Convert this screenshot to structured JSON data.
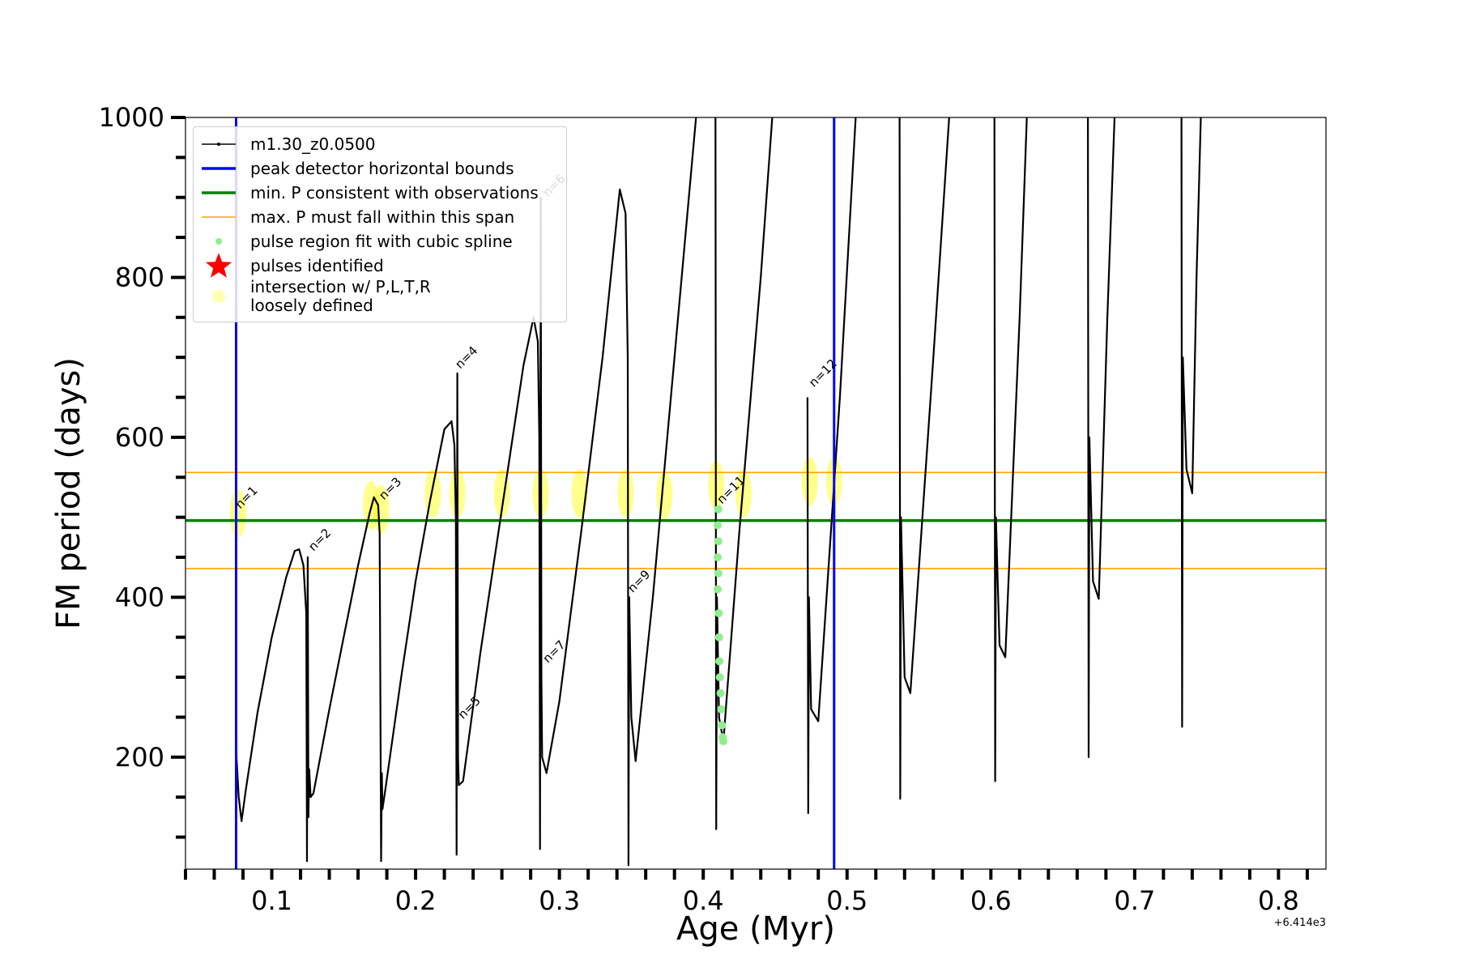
{
  "chart_data": {
    "type": "line",
    "xlabel": "Age (Myr)",
    "ylabel": "FM period (days)",
    "x_offset_label": "+6.414e3",
    "xlim": [
      0.04,
      0.833
    ],
    "ylim": [
      60,
      1000
    ],
    "xticks": [
      0.1,
      0.2,
      0.3,
      0.4,
      0.5,
      0.6,
      0.7,
      0.8
    ],
    "xminorticks": [
      0.04,
      0.06,
      0.08,
      0.12,
      0.14,
      0.16,
      0.18,
      0.22,
      0.24,
      0.26,
      0.28,
      0.32,
      0.34,
      0.36,
      0.38,
      0.42,
      0.44,
      0.46,
      0.48,
      0.52,
      0.54,
      0.56,
      0.58,
      0.62,
      0.64,
      0.66,
      0.68,
      0.72,
      0.74,
      0.76,
      0.78,
      0.82
    ],
    "yticks": [
      200,
      400,
      600,
      800,
      1000
    ],
    "yminorticks": [
      100,
      150,
      250,
      300,
      350,
      450,
      500,
      550,
      650,
      700,
      750,
      850,
      900,
      950
    ],
    "legend": "upper left",
    "series": [
      {
        "name": "m1.30_z0.0500",
        "kind": "line",
        "color": "#000000",
        "x": [
          0.0752,
          0.0755,
          0.077,
          0.079,
          0.082,
          0.09,
          0.1,
          0.11,
          0.116,
          0.119,
          0.122,
          0.124,
          0.1245,
          0.125,
          0.1255,
          0.126,
          0.127,
          0.129,
          0.14,
          0.15,
          0.16,
          0.168,
          0.171,
          0.174,
          0.175,
          0.176,
          0.1765,
          0.177,
          0.179,
          0.19,
          0.2,
          0.21,
          0.22,
          0.225,
          0.227,
          0.228,
          0.2285,
          0.229,
          0.2295,
          0.23,
          0.233,
          0.245,
          0.26,
          0.275,
          0.282,
          0.285,
          0.286,
          0.2865,
          0.287,
          0.2875,
          0.288,
          0.291,
          0.3,
          0.315,
          0.33,
          0.342,
          0.346,
          0.3475,
          0.348,
          0.3485,
          0.35,
          0.353,
          0.365,
          0.38,
          0.395,
          0.4,
          0.4085,
          0.409,
          0.4095,
          0.411,
          0.414,
          0.425,
          0.44,
          0.448,
          0.46,
          0.4725,
          0.473,
          0.4735,
          0.475,
          0.48,
          0.495,
          0.506,
          0.52,
          0.5365,
          0.537,
          0.5375,
          0.54,
          0.544,
          0.56,
          0.571,
          0.59,
          0.6025,
          0.603,
          0.6035,
          0.606,
          0.61,
          0.62,
          0.625,
          0.65,
          0.6675,
          0.668,
          0.6685,
          0.671,
          0.675,
          0.681,
          0.686,
          0.71,
          0.7325,
          0.733,
          0.7335,
          0.736,
          0.74,
          0.743,
          0.746
        ],
        "values": [
          335,
          200,
          150,
          120,
          160,
          255,
          350,
          425,
          458,
          460,
          440,
          380,
          70,
          450,
          125,
          185,
          150,
          155,
          260,
          350,
          440,
          505,
          525,
          515,
          480,
          70,
          180,
          135,
          160,
          300,
          420,
          520,
          610,
          620,
          590,
          500,
          78,
          680,
          200,
          165,
          170,
          330,
          510,
          690,
          750,
          720,
          600,
          85,
          900,
          300,
          200,
          180,
          270,
          480,
          700,
          910,
          880,
          700,
          65,
          400,
          250,
          195,
          400,
          700,
          1000,
          null,
          1000,
          110,
          400,
          250,
          220,
          480,
          800,
          1000,
          null,
          650,
          130,
          400,
          260,
          245,
          650,
          1000,
          null,
          1000,
          148,
          500,
          300,
          280,
          700,
          1000,
          null,
          1000,
          170,
          500,
          340,
          325,
          750,
          1000,
          null,
          1000,
          200,
          600,
          420,
          398,
          750,
          1000,
          null,
          1000,
          238,
          700,
          560,
          530,
          800,
          1000
        ]
      },
      {
        "name": "peak detector horizontal bounds",
        "kind": "vline",
        "color": "#0000ff",
        "x": [
          0.0752,
          0.491
        ]
      },
      {
        "name": "min. P consistent with observations",
        "kind": "hline",
        "color": "#008000",
        "values": [
          496
        ]
      },
      {
        "name": "max. P must fall within this span",
        "kind": "hline",
        "color": "#ffa500",
        "values": [
          556,
          436
        ]
      },
      {
        "name": "pulse region fit with cubic spline",
        "kind": "scatter",
        "color": "#90ee90",
        "x": [
          0.4105,
          0.41,
          0.4105,
          0.41,
          0.4105,
          0.41,
          0.4108,
          0.411,
          0.4112,
          0.4115,
          0.412,
          0.4125,
          0.413,
          0.4135,
          0.414
        ],
        "values": [
          510,
          490,
          470,
          450,
          430,
          410,
          380,
          350,
          320,
          300,
          280,
          260,
          240,
          225,
          220
        ]
      },
      {
        "name": "pulses identified",
        "kind": "star",
        "color": "#ff0000",
        "x": [],
        "values": []
      },
      {
        "name": "intersection w/ P,L,T,R\nloosely defined",
        "kind": "ellipse",
        "color": "#ffff00",
        "x": [
          0.0765,
          0.169,
          0.176,
          0.212,
          0.229,
          0.26,
          0.287,
          0.314,
          0.346,
          0.373,
          0.409,
          0.428,
          0.474,
          0.491
        ],
        "values": [
          505,
          515,
          510,
          530,
          530,
          530,
          530,
          530,
          530,
          528,
          540,
          530,
          545,
          545
        ]
      }
    ],
    "annotations": [
      {
        "text": "n=1",
        "x": 0.078,
        "y": 510
      },
      {
        "text": "n=2",
        "x": 0.129,
        "y": 457
      },
      {
        "text": "n=3",
        "x": 0.178,
        "y": 521
      },
      {
        "text": "n=4",
        "x": 0.231,
        "y": 685
      },
      {
        "text": "n=5",
        "x": 0.233,
        "y": 247
      },
      {
        "text": "n=6",
        "x": 0.292,
        "y": 900
      },
      {
        "text": "n=7",
        "x": 0.292,
        "y": 317
      },
      {
        "text": "n=9",
        "x": 0.351,
        "y": 405
      },
      {
        "text": "n=11",
        "x": 0.413,
        "y": 516
      },
      {
        "text": "n=12",
        "x": 0.477,
        "y": 662
      }
    ]
  }
}
